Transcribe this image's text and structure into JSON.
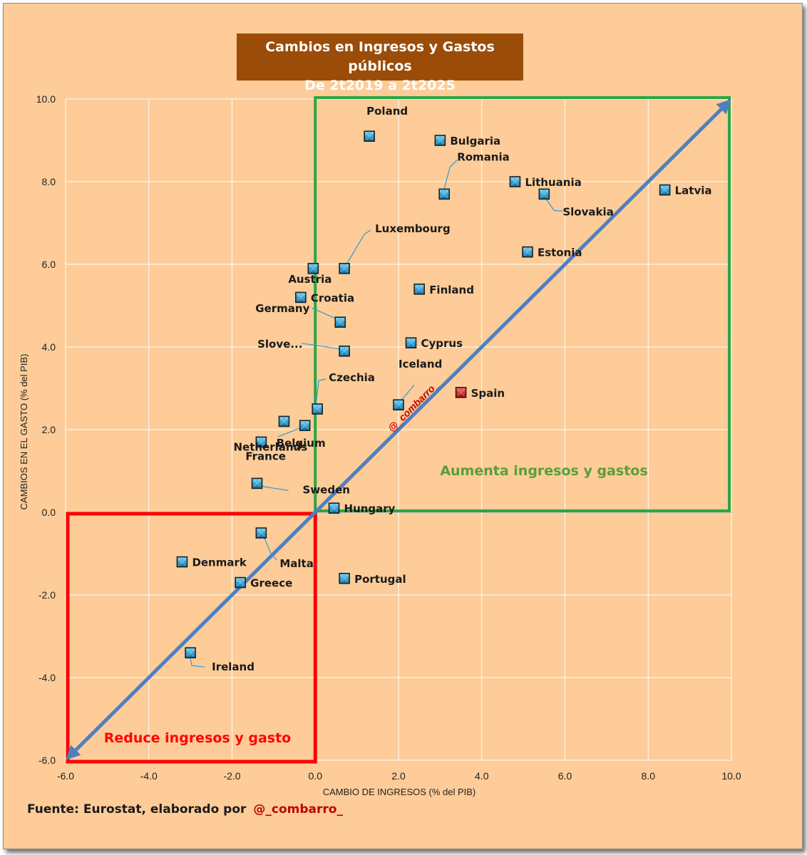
{
  "chart_data": {
    "type": "scatter",
    "title": "Cambios en Ingresos y Gastos públicos",
    "subtitle": "De 2t2019 a 2t2025",
    "xlabel": "CAMBIO DE INGRESOS  (% del PIB)",
    "ylabel": "CAMBIOS EN EL  GASTO  (% del PIB)",
    "xlim": [
      -6,
      10
    ],
    "ylim": [
      -6,
      10
    ],
    "xticks": [
      "-6.0",
      "-4.0",
      "-2.0",
      "0.0",
      "2.0",
      "4.0",
      "6.0",
      "8.0",
      "10.0"
    ],
    "yticks": [
      "-6.0",
      "-4.0",
      "-2.0",
      "0.0",
      "2.0",
      "4.0",
      "6.0",
      "8.0",
      "10.0"
    ],
    "grid": true,
    "points": [
      {
        "label": "Poland",
        "x": 1.3,
        "y": 9.1
      },
      {
        "label": "Bulgaria",
        "x": 3.0,
        "y": 9.0
      },
      {
        "label": "Romania",
        "x": 3.1,
        "y": 7.7
      },
      {
        "label": "Lithuania",
        "x": 4.8,
        "y": 8.0
      },
      {
        "label": "Latvia",
        "x": 8.4,
        "y": 7.8
      },
      {
        "label": "Slovakia",
        "x": 5.5,
        "y": 7.7
      },
      {
        "label": "Estonia",
        "x": 5.1,
        "y": 6.3
      },
      {
        "label": "Luxembourg",
        "x": 0.7,
        "y": 5.9
      },
      {
        "label": "Austria",
        "x": -0.05,
        "y": 5.9
      },
      {
        "label": "Croatia",
        "x": -0.35,
        "y": 5.2
      },
      {
        "label": "Germany",
        "x": 0.6,
        "y": 4.6
      },
      {
        "label": "Finland",
        "x": 2.5,
        "y": 5.4
      },
      {
        "label": "Slove...",
        "x": 0.7,
        "y": 3.9
      },
      {
        "label": "Cyprus",
        "x": 2.3,
        "y": 4.1
      },
      {
        "label": "Czechia",
        "x": 0.05,
        "y": 2.5
      },
      {
        "label": "Iceland",
        "x": 2.0,
        "y": 2.6
      },
      {
        "label": "Spain",
        "x": 3.5,
        "y": 2.9,
        "highlight": true
      },
      {
        "label": "Belgium",
        "x": -0.25,
        "y": 2.1
      },
      {
        "label": "Netherlands",
        "x": -0.75,
        "y": 2.2
      },
      {
        "label": "France",
        "x": -1.3,
        "y": 1.7
      },
      {
        "label": "Sweden",
        "x": -1.4,
        "y": 0.7
      },
      {
        "label": "Hungary",
        "x": 0.45,
        "y": 0.1
      },
      {
        "label": "Malta",
        "x": -1.3,
        "y": -0.5
      },
      {
        "label": "Denmark",
        "x": -3.2,
        "y": -1.2
      },
      {
        "label": "Greece",
        "x": -1.8,
        "y": -1.7
      },
      {
        "label": "Portugal",
        "x": 0.7,
        "y": -1.6
      },
      {
        "label": "Ireland",
        "x": -3.0,
        "y": -3.4
      }
    ],
    "diagonal": {
      "from": [
        -6,
        -6
      ],
      "to": [
        10,
        10
      ]
    },
    "regions": [
      {
        "label": "Aumenta ingresos y gastos",
        "x": [
          0,
          10
        ],
        "y": [
          0,
          10
        ],
        "color": "#28a745"
      },
      {
        "label": "Reduce ingresos y gasto",
        "x": [
          -6,
          0
        ],
        "y": [
          -6,
          0
        ],
        "color": "#ff0000"
      }
    ],
    "watermark": "@_combarro_",
    "colors": {
      "background": "#fdcc98",
      "title_bg": "#9a4c08",
      "diagonal": "#4f7fc0",
      "marker": "#1fa3dc",
      "marker_highlight": "#e8141b",
      "grid": "#ffffff",
      "leader": "#2f9bd7"
    }
  },
  "footer": {
    "source": "Fuente:  Eurostat, elaborado por",
    "handle": "@_combarro_"
  }
}
